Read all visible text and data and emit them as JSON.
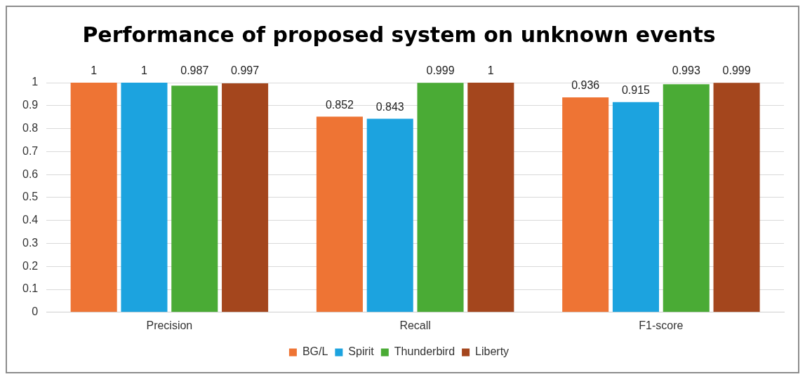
{
  "chart_data": {
    "type": "bar",
    "title": "Performance of proposed system on unknown events",
    "categories": [
      "Precision",
      "Recall",
      "F1-score"
    ],
    "series": [
      {
        "name": "BG/L",
        "color": "#ee7434",
        "values": [
          1,
          0.852,
          0.936
        ]
      },
      {
        "name": "Spirit",
        "color": "#1ca3df",
        "values": [
          1,
          0.843,
          0.915
        ]
      },
      {
        "name": "Thunderbird",
        "color": "#4aab35",
        "values": [
          0.987,
          0.999,
          0.993
        ]
      },
      {
        "name": "Liberty",
        "color": "#a4461d",
        "values": [
          0.997,
          1,
          0.999
        ]
      }
    ],
    "ylim": [
      0,
      1
    ],
    "yticks": [
      0,
      0.1,
      0.2,
      0.3,
      0.4,
      0.5,
      0.6,
      0.7,
      0.8,
      0.9,
      1
    ],
    "grid": "y",
    "legend": "bottom",
    "data_labels": true
  }
}
